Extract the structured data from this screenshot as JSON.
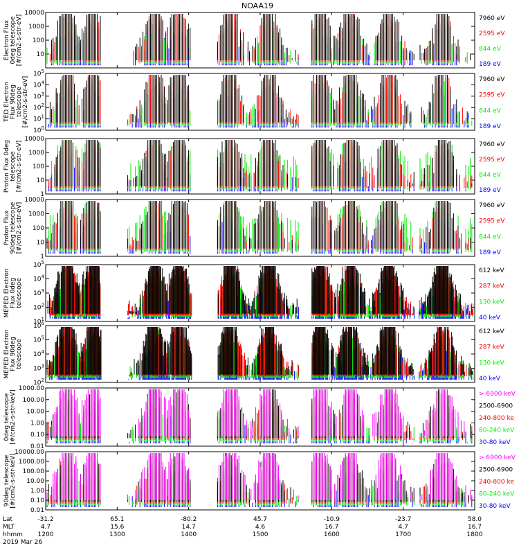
{
  "title": "NOAA19",
  "colors": {
    "blue": "#0000ff",
    "red": "#ff0000",
    "green": "#00ee00",
    "black": "#000000",
    "magenta": "#ff00ff"
  },
  "footer": {
    "row_labels": [
      "Lat",
      "MLT",
      "hhmm",
      "2019 Mar 26"
    ],
    "lat": [
      "-31.2",
      "65.1",
      "-80.2",
      "45.7",
      "-10.9",
      "-23.7",
      "58.0"
    ],
    "mlt": [
      "4.7",
      "15.6",
      "14.7",
      "4.6",
      "16.7",
      "4.7",
      "16.7"
    ],
    "hhmm": [
      "1200",
      "1300",
      "1400",
      "1500",
      "1600",
      "1700",
      "1800"
    ]
  },
  "chart_data": [
    {
      "type": "line",
      "log_y": true,
      "ylabel": "Electron Flux 0deg telescope [#/cm2-s-str-eV]",
      "yticks": [
        "10",
        "100",
        "1000",
        "10000"
      ],
      "yrange": [
        1,
        10000
      ],
      "series": [
        {
          "name": "7960 eV",
          "color": "black"
        },
        {
          "name": "2595 eV",
          "color": "red"
        },
        {
          "name": "844 eV",
          "color": "green"
        },
        {
          "name": "189 eV",
          "color": "blue"
        }
      ]
    },
    {
      "type": "line",
      "log_y": true,
      "ylabel": "TED Electron Flux 90deg telescope [#/cm2-s-str-eV]",
      "yticks": [
        "10^0",
        "10^1",
        "10^2",
        "10^3",
        "10^4",
        "10^5"
      ],
      "yrange": [
        1,
        100000
      ],
      "series": [
        {
          "name": "7960 eV",
          "color": "black"
        },
        {
          "name": "2595 eV",
          "color": "red"
        },
        {
          "name": "844 eV",
          "color": "green"
        },
        {
          "name": "189 eV",
          "color": "blue"
        }
      ]
    },
    {
      "type": "line",
      "log_y": true,
      "ylabel": "Proton Flux 0deg telescope [#/cm2-s-str-eV]",
      "yticks": [
        "1",
        "10",
        "100",
        "1000",
        "10000"
      ],
      "yrange": [
        1,
        10000
      ],
      "series": [
        {
          "name": "7960 eV",
          "color": "black"
        },
        {
          "name": "2595 eV",
          "color": "red"
        },
        {
          "name": "844 eV",
          "color": "green"
        },
        {
          "name": "189 eV",
          "color": "blue"
        }
      ]
    },
    {
      "type": "line",
      "log_y": true,
      "ylabel": "Proton Flux 90deg telescope [#/cm2-s-str-eV]",
      "yticks": [
        "1",
        "10",
        "100",
        "1000",
        "10000"
      ],
      "yrange": [
        1,
        10000
      ],
      "series": [
        {
          "name": "7960 eV",
          "color": "black"
        },
        {
          "name": "2595 eV",
          "color": "red"
        },
        {
          "name": "844 eV",
          "color": "green"
        },
        {
          "name": "189 eV",
          "color": "blue"
        }
      ]
    },
    {
      "type": "line",
      "log_y": true,
      "ylabel": "MEPED Electron Flux 0deg telescope",
      "yticks": [
        "10^1",
        "10^2",
        "10^3",
        "10^4",
        "10^5"
      ],
      "yrange": [
        10,
        100000
      ],
      "series": [
        {
          "name": "612 keV",
          "color": "black"
        },
        {
          "name": "287 keV",
          "color": "red"
        },
        {
          "name": "130 keV",
          "color": "green"
        },
        {
          "name": "40 keV",
          "color": "blue"
        }
      ]
    },
    {
      "type": "line",
      "log_y": true,
      "ylabel": "MEPED Electron Flux 90deg telescope",
      "yticks": [
        "10^2",
        "10^3",
        "10^4",
        "10^5",
        "10^6"
      ],
      "yrange": [
        100,
        1000000
      ],
      "series": [
        {
          "name": "612 keV",
          "color": "black"
        },
        {
          "name": "287 keV",
          "color": "red"
        },
        {
          "name": "130 keV",
          "color": "green"
        },
        {
          "name": "40 keV",
          "color": "blue"
        }
      ]
    },
    {
      "type": "line",
      "log_y": true,
      "ylabel": "0deg telescope [#/cm2-s-str-keV]",
      "yticks": [
        "0.01",
        "0.10",
        "1.00",
        "10.00",
        "100.00",
        "1000.00"
      ],
      "yrange": [
        0.01,
        1000
      ],
      "series": [
        {
          "name": "> 6900 keV",
          "color": "magenta"
        },
        {
          "name": "2500-6900",
          "color": "black"
        },
        {
          "name": "240-800 ke",
          "color": "red"
        },
        {
          "name": "80-240 keV",
          "color": "green"
        },
        {
          "name": "30-80 keV",
          "color": "blue"
        }
      ]
    },
    {
      "type": "line",
      "log_y": true,
      "ylabel": "90deg telescope [#/cm2-s-str-keV]",
      "yticks": [
        "0.01",
        "0.10",
        "1.00",
        "10.00",
        "100.00",
        "1000.00",
        "10000.00"
      ],
      "yrange": [
        0.01,
        10000
      ],
      "series": [
        {
          "name": "> 6900 keV",
          "color": "magenta"
        },
        {
          "name": "2500-6900",
          "color": "black"
        },
        {
          "name": "240-800 ke",
          "color": "red"
        },
        {
          "name": "80-240 keV",
          "color": "green"
        },
        {
          "name": "30-80 keV",
          "color": "blue"
        }
      ]
    }
  ]
}
